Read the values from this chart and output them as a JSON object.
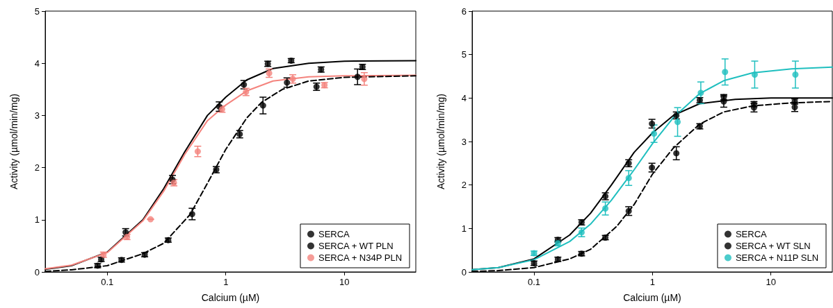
{
  "chart_data": [
    {
      "type": "scatter",
      "xlabel": "Calcium (µM)",
      "ylabel": "Activity (µmol/min/mg)",
      "log": "x",
      "xlim": [
        0.03,
        40
      ],
      "xticks": [
        0.1,
        1,
        10
      ],
      "ylim": [
        0,
        5
      ],
      "yticks": [
        0,
        1,
        2,
        3,
        4,
        5
      ],
      "grid": false,
      "legend": "bottom right",
      "marker": "circle",
      "series": [
        {
          "type": "line",
          "color": "#000000",
          "line_style": "solid",
          "marker": "none",
          "x": [
            0.03,
            0.05,
            0.1,
            0.2,
            0.3,
            0.45,
            0.7,
            1,
            1.5,
            2.5,
            5,
            10,
            40
          ],
          "values": [
            0.05,
            0.12,
            0.38,
            1.0,
            1.6,
            2.3,
            3.0,
            3.35,
            3.68,
            3.9,
            4.0,
            4.04,
            4.05
          ]
        },
        {
          "type": "line",
          "color": "#f4837d",
          "line_style": "solid",
          "marker": "none",
          "x": [
            0.03,
            0.05,
            0.1,
            0.2,
            0.3,
            0.45,
            0.7,
            1,
            1.5,
            2.5,
            5,
            10,
            40
          ],
          "values": [
            0.06,
            0.13,
            0.37,
            0.98,
            1.55,
            2.25,
            2.9,
            3.2,
            3.47,
            3.66,
            3.74,
            3.76,
            3.77
          ]
        },
        {
          "type": "line",
          "color": "#000000",
          "line_style": "dashed",
          "marker": "none",
          "x": [
            0.03,
            0.05,
            0.1,
            0.2,
            0.3,
            0.5,
            0.7,
            1,
            1.5,
            2,
            3,
            5,
            10,
            40
          ],
          "values": [
            0.01,
            0.04,
            0.12,
            0.35,
            0.55,
            1.1,
            1.7,
            2.35,
            2.95,
            3.25,
            3.5,
            3.66,
            3.73,
            3.76
          ]
        },
        {
          "name": "SERCA",
          "color": "#000000",
          "x": [
            0.089,
            0.143,
            0.23,
            0.355,
            0.56,
            0.88,
            1.42,
            2.26,
            3.56,
            6.36,
            14.2
          ],
          "values": [
            0.24,
            0.76,
            null,
            1.77,
            null,
            3.17,
            3.59,
            3.99,
            4.05,
            3.88,
            3.93
          ],
          "errors": [
            0.04,
            0.07,
            null,
            0.08,
            null,
            0.09,
            0.08,
            0.05,
            0.04,
            0.05,
            0.05
          ]
        },
        {
          "name": "SERCA + WT PLN",
          "color": "#000000",
          "x": [
            0.083,
            0.132,
            0.207,
            0.327,
            0.52,
            0.83,
            1.31,
            2.06,
            3.28,
            5.82,
            12.9
          ],
          "values": [
            0.12,
            0.23,
            0.33,
            0.61,
            1.11,
            1.96,
            2.64,
            3.19,
            3.63,
            3.55,
            3.74
          ],
          "errors": [
            0.04,
            0.04,
            0.04,
            0.04,
            0.11,
            0.06,
            0.07,
            0.16,
            0.09,
            0.07,
            0.15
          ]
        },
        {
          "name": "SERCA + N34P PLN",
          "color": "#f4837d",
          "x": [
            0.093,
            0.147,
            0.232,
            0.365,
            0.58,
            0.93,
            1.48,
            2.32,
            3.67,
            6.79,
            14.7
          ],
          "values": [
            0.33,
            0.67,
            1.01,
            1.71,
            2.31,
            3.12,
            3.45,
            3.81,
            3.7,
            3.58,
            3.7
          ],
          "errors": [
            0.05,
            0.05,
            null,
            0.06,
            0.1,
            0.06,
            0.07,
            0.08,
            0.08,
            0.05,
            0.12
          ]
        }
      ]
    },
    {
      "type": "scatter",
      "xlabel": "Calcium (µM)",
      "ylabel": "Activity (µmol/min/mg)",
      "log": "x",
      "xlim": [
        0.03,
        33
      ],
      "xticks": [
        0.1,
        1,
        10
      ],
      "ylim": [
        0,
        6
      ],
      "yticks": [
        0,
        1,
        2,
        3,
        4,
        5,
        6
      ],
      "grid": false,
      "legend": "bottom right",
      "marker": "circle",
      "series": [
        {
          "type": "line",
          "color": "#000000",
          "line_style": "solid",
          "marker": "none",
          "x": [
            0.03,
            0.05,
            0.1,
            0.2,
            0.3,
            0.45,
            0.7,
            1,
            1.5,
            2.5,
            5,
            10,
            33
          ],
          "values": [
            0.05,
            0.1,
            0.3,
            0.85,
            1.35,
            2.0,
            2.75,
            3.2,
            3.6,
            3.87,
            3.97,
            4.0,
            4.0
          ]
        },
        {
          "type": "line",
          "color": "#1fbfbf",
          "line_style": "solid",
          "marker": "none",
          "x": [
            0.03,
            0.05,
            0.1,
            0.2,
            0.3,
            0.45,
            0.7,
            1,
            1.5,
            2.5,
            4,
            7,
            15,
            33
          ],
          "values": [
            0.05,
            0.1,
            0.28,
            0.7,
            1.1,
            1.65,
            2.35,
            2.95,
            3.55,
            4.1,
            4.4,
            4.58,
            4.67,
            4.71
          ]
        },
        {
          "type": "line",
          "color": "#000000",
          "line_style": "dashed",
          "marker": "none",
          "x": [
            0.03,
            0.05,
            0.1,
            0.2,
            0.3,
            0.5,
            0.7,
            1,
            1.5,
            2.5,
            4,
            7,
            15,
            33
          ],
          "values": [
            0.01,
            0.03,
            0.1,
            0.3,
            0.52,
            1.05,
            1.55,
            2.25,
            2.85,
            3.4,
            3.68,
            3.82,
            3.89,
            3.92
          ]
        },
        {
          "name": "SERCA",
          "color": "#000000",
          "x": [
            0.159,
            0.252,
            0.4,
            0.63,
            0.99,
            1.59,
            2.51,
            4.0,
            7.2,
            15.9
          ],
          "values": [
            0.74,
            1.14,
            1.74,
            2.5,
            3.41,
            3.6,
            3.95,
            4.02,
            3.86,
            3.92
          ],
          "errors": [
            0.05,
            0.06,
            0.08,
            0.08,
            0.1,
            0.08,
            0.06,
            0.06,
            0.06,
            0.06
          ]
        },
        {
          "name": "SERCA + WT SLN",
          "color": "#000000",
          "x": [
            0.1,
            0.159,
            0.252,
            0.4,
            0.63,
            0.99,
            1.59,
            2.51,
            4.0,
            7.2,
            15.9
          ],
          "values": [
            0.2,
            0.29,
            0.42,
            0.79,
            1.4,
            2.4,
            2.73,
            3.35,
            3.92,
            3.78,
            3.79
          ],
          "errors": [
            0.05,
            0.05,
            0.05,
            0.05,
            0.1,
            0.1,
            0.15,
            0.06,
            0.13,
            0.1,
            0.1
          ]
        },
        {
          "name": "SERCA + N11P SLN",
          "color": "#1fbfbf",
          "x": [
            0.1,
            0.159,
            0.252,
            0.4,
            0.63,
            1.03,
            1.63,
            2.56,
            4.1,
            7.3,
            16.1
          ],
          "values": [
            0.43,
            0.66,
            0.91,
            1.46,
            2.16,
            3.18,
            3.45,
            4.12,
            4.6,
            4.54,
            4.54
          ],
          "errors": [
            0.05,
            0.06,
            0.1,
            0.15,
            0.17,
            0.2,
            0.33,
            0.25,
            0.3,
            0.31,
            0.31
          ]
        }
      ]
    }
  ]
}
